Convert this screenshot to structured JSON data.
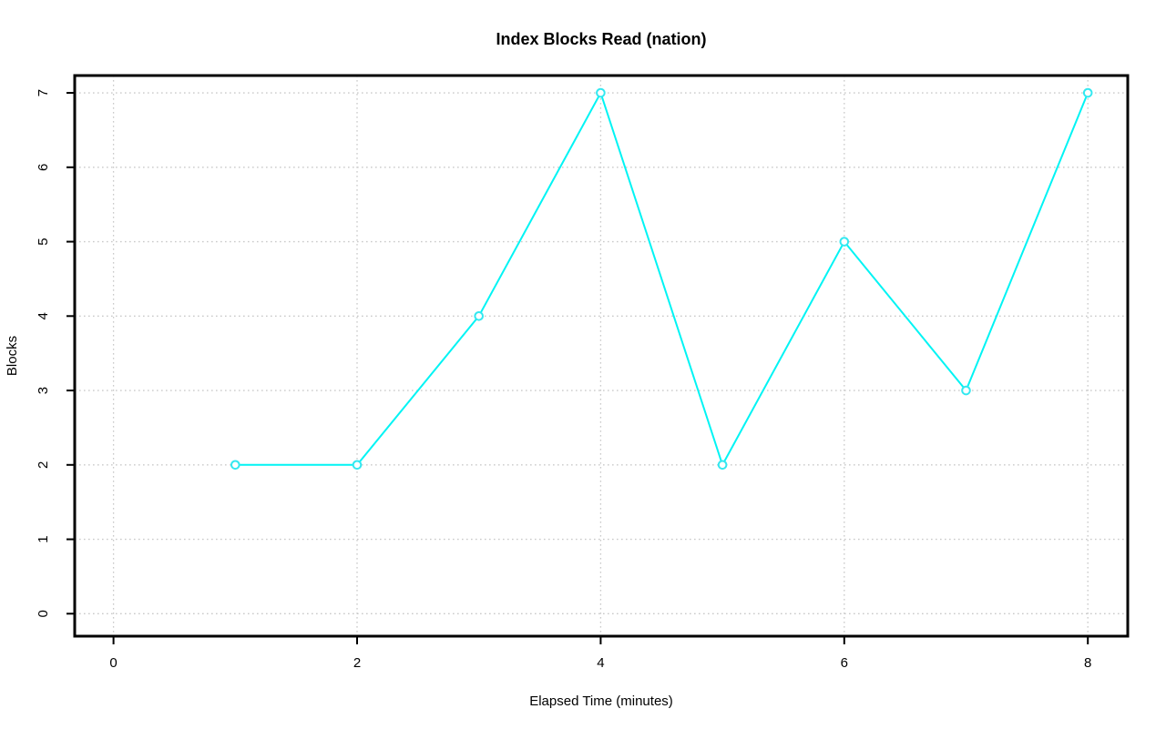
{
  "chart_data": {
    "type": "line",
    "title": "Index Blocks Read (nation)",
    "xlabel": "Elapsed Time (minutes)",
    "ylabel": "Blocks",
    "x": [
      1,
      2,
      3,
      4,
      5,
      6,
      7,
      8
    ],
    "series": [
      {
        "name": "Blocks",
        "values": [
          2,
          2,
          4,
          7,
          2,
          5,
          3,
          7
        ]
      }
    ],
    "xlim": [
      0,
      8
    ],
    "ylim": [
      0,
      7
    ],
    "xticks": [
      0,
      2,
      4,
      6,
      8
    ],
    "yticks": [
      0,
      1,
      2,
      3,
      4,
      5,
      6,
      7
    ],
    "grid": true,
    "grid_style": "dotted",
    "legend_position": "none",
    "marker": "open-circle",
    "colors": {
      "line": "#00F4F4",
      "marker": "#33E8F0",
      "grid": "#c9c9c9",
      "axis": "#000000",
      "text": "#000000",
      "background": "#ffffff"
    }
  }
}
